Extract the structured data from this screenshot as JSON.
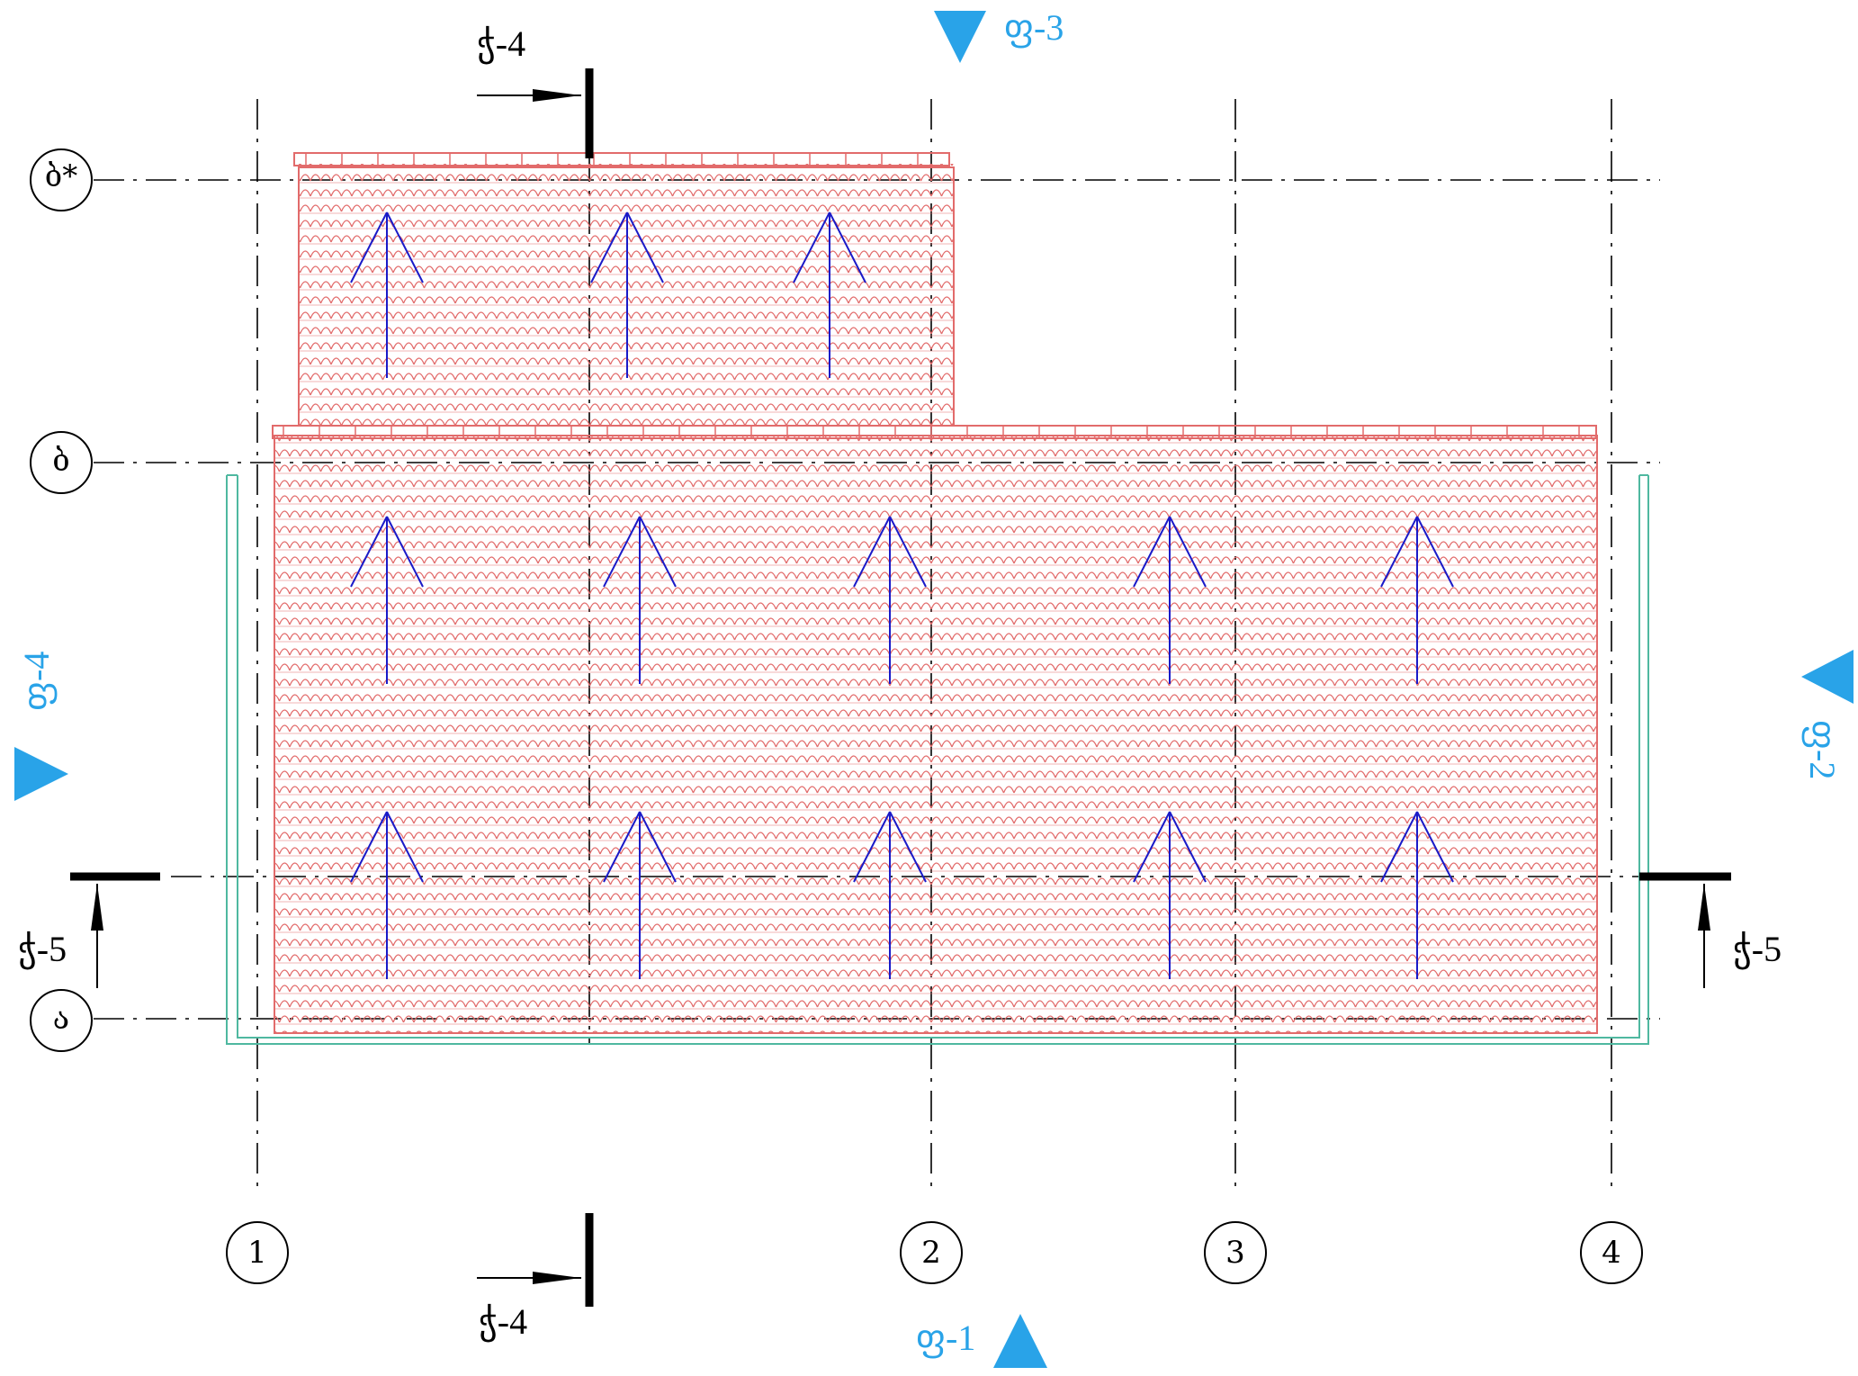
{
  "grid": {
    "columns": [
      "1",
      "2",
      "3",
      "4"
    ],
    "rows": [
      "ბ*",
      "ბ",
      "ა"
    ]
  },
  "sections": {
    "top_left": "ჭ-4",
    "bottom_left": "ჭ-4",
    "left": "ჭ-5",
    "right": "ჭ-5"
  },
  "views": {
    "top": "ფ-3",
    "bottom": "ფ-1",
    "left": "ფ-4",
    "right": "ფ-2"
  },
  "colors": {
    "tile": "#e26b6b",
    "view_marker": "#29a3e8",
    "slope_arrow": "#1a1ac8",
    "gutter": "#4fb8a0"
  }
}
